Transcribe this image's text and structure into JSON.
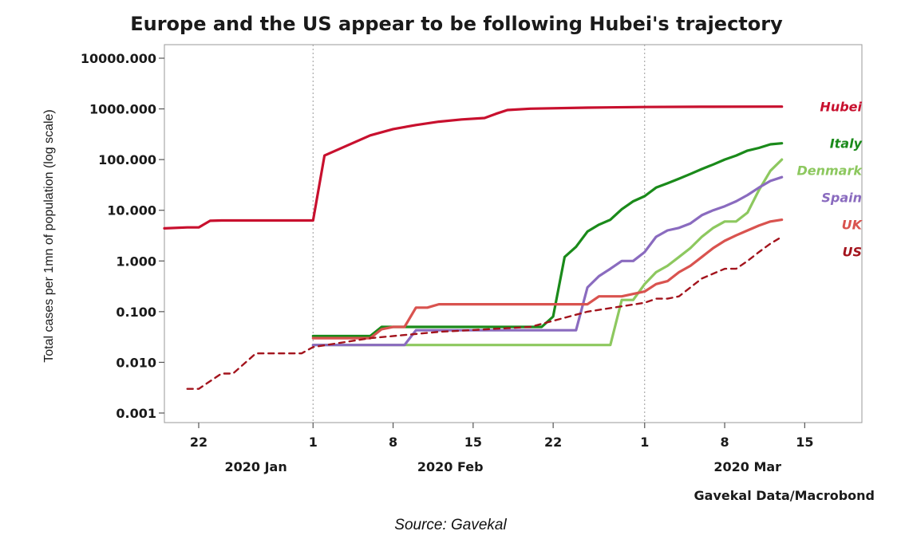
{
  "chart_data": {
    "type": "line",
    "title": "Europe and the US appear to be following Hubei's trajectory",
    "ylabel": "Total cases per 1mn of population (log scale)",
    "xlabel": "",
    "yscale": "log",
    "ylim": [
      0.001,
      10000
    ],
    "xlim": [
      "2020-01-19",
      "2020-03-20"
    ],
    "yticks": [
      "10000.000",
      "1000.000",
      "100.000",
      "10.000",
      "1.000",
      "0.100",
      "0.010",
      "0.001"
    ],
    "xticks": [
      {
        "date": "2020-01-22",
        "label": "22"
      },
      {
        "date": "2020-02-01",
        "label": "1"
      },
      {
        "date": "2020-02-08",
        "label": "8"
      },
      {
        "date": "2020-02-15",
        "label": "15"
      },
      {
        "date": "2020-02-22",
        "label": "22"
      },
      {
        "date": "2020-03-01",
        "label": "1"
      },
      {
        "date": "2020-03-08",
        "label": "8"
      },
      {
        "date": "2020-03-15",
        "label": "15"
      }
    ],
    "month_labels": [
      {
        "date": "2020-01-27",
        "label": "2020 Jan"
      },
      {
        "date": "2020-02-13",
        "label": "2020 Feb"
      },
      {
        "date": "2020-03-10",
        "label": "2020 Mar"
      }
    ],
    "grid": false,
    "legend": "right, labels beside line ends",
    "series": [
      {
        "name": "Hubei",
        "color": "#c8102e",
        "dash": false,
        "x": [
          "2020-01-19",
          "2020-01-21",
          "2020-01-22",
          "2020-01-23",
          "2020-01-24",
          "2020-01-25",
          "2020-01-26",
          "2020-01-27",
          "2020-01-28",
          "2020-01-29",
          "2020-01-30",
          "2020-01-31",
          "2020-02-01",
          "2020-02-02",
          "2020-02-04",
          "2020-02-06",
          "2020-02-08",
          "2020-02-10",
          "2020-02-12",
          "2020-02-14",
          "2020-02-16",
          "2020-02-17",
          "2020-02-18",
          "2020-02-20",
          "2020-02-25",
          "2020-03-01",
          "2020-03-06",
          "2020-03-13"
        ],
        "y": [
          4.4,
          4.6,
          4.6,
          6.2,
          6.3,
          6.3,
          6.3,
          6.3,
          6.3,
          6.3,
          6.3,
          6.3,
          6.3,
          120,
          190,
          300,
          400,
          480,
          560,
          620,
          660,
          800,
          950,
          1010,
          1060,
          1090,
          1100,
          1110
        ]
      },
      {
        "name": "Italy",
        "color": "#1a8a1a",
        "dash": false,
        "x": [
          "2020-02-01",
          "2020-02-06",
          "2020-02-07",
          "2020-02-15",
          "2020-02-21",
          "2020-02-22",
          "2020-02-23",
          "2020-02-24",
          "2020-02-25",
          "2020-02-26",
          "2020-02-27",
          "2020-02-28",
          "2020-02-29",
          "2020-03-01",
          "2020-03-02",
          "2020-03-03",
          "2020-03-04",
          "2020-03-05",
          "2020-03-06",
          "2020-03-07",
          "2020-03-08",
          "2020-03-09",
          "2020-03-10",
          "2020-03-11",
          "2020-03-12",
          "2020-03-13"
        ],
        "y": [
          0.033,
          0.033,
          0.05,
          0.05,
          0.05,
          0.08,
          1.2,
          1.9,
          3.8,
          5.2,
          6.5,
          10.5,
          15,
          19,
          28,
          34,
          42,
          52,
          65,
          80,
          100,
          120,
          150,
          170,
          200,
          210
        ]
      },
      {
        "name": "Denmark",
        "color": "#8dc85f",
        "dash": false,
        "x": [
          "2020-02-01",
          "2020-02-27",
          "2020-02-28",
          "2020-02-29",
          "2020-03-01",
          "2020-03-02",
          "2020-03-03",
          "2020-03-04",
          "2020-03-05",
          "2020-03-06",
          "2020-03-07",
          "2020-03-08",
          "2020-03-09",
          "2020-03-10",
          "2020-03-11",
          "2020-03-12",
          "2020-03-13"
        ],
        "y": [
          0.022,
          0.022,
          0.17,
          0.17,
          0.35,
          0.6,
          0.8,
          1.2,
          1.8,
          3.0,
          4.5,
          6.0,
          6.0,
          9.0,
          25,
          60,
          100
        ]
      },
      {
        "name": "Spain",
        "color": "#8a6bbf",
        "dash": false,
        "x": [
          "2020-02-01",
          "2020-02-09",
          "2020-02-10",
          "2020-02-24",
          "2020-02-25",
          "2020-02-26",
          "2020-02-27",
          "2020-02-28",
          "2020-02-29",
          "2020-03-01",
          "2020-03-02",
          "2020-03-03",
          "2020-03-04",
          "2020-03-05",
          "2020-03-06",
          "2020-03-07",
          "2020-03-08",
          "2020-03-09",
          "2020-03-10",
          "2020-03-11",
          "2020-03-12",
          "2020-03-13"
        ],
        "y": [
          0.022,
          0.022,
          0.043,
          0.043,
          0.3,
          0.5,
          0.7,
          1.0,
          1.0,
          1.5,
          3.0,
          4.0,
          4.5,
          5.5,
          8,
          10,
          12,
          15,
          20,
          28,
          38,
          45
        ]
      },
      {
        "name": "UK",
        "color": "#d9534f",
        "dash": false,
        "x": [
          "2020-02-01",
          "2020-02-06",
          "2020-02-07",
          "2020-02-08",
          "2020-02-09",
          "2020-02-10",
          "2020-02-11",
          "2020-02-12",
          "2020-02-25",
          "2020-02-26",
          "2020-02-27",
          "2020-02-28",
          "2020-03-01",
          "2020-03-02",
          "2020-03-03",
          "2020-03-04",
          "2020-03-05",
          "2020-03-06",
          "2020-03-07",
          "2020-03-08",
          "2020-03-09",
          "2020-03-10",
          "2020-03-11",
          "2020-03-12",
          "2020-03-13"
        ],
        "y": [
          0.03,
          0.03,
          0.045,
          0.05,
          0.05,
          0.12,
          0.12,
          0.14,
          0.14,
          0.2,
          0.2,
          0.2,
          0.25,
          0.35,
          0.4,
          0.6,
          0.8,
          1.2,
          1.8,
          2.5,
          3.2,
          4.0,
          5.0,
          6.0,
          6.5
        ]
      },
      {
        "name": "US",
        "color": "#a3141d",
        "dash": true,
        "x": [
          "2020-01-21",
          "2020-01-22",
          "2020-01-24",
          "2020-01-25",
          "2020-01-27",
          "2020-01-29",
          "2020-01-31",
          "2020-02-01",
          "2020-02-06",
          "2020-02-12",
          "2020-02-20",
          "2020-02-25",
          "2020-03-01",
          "2020-03-02",
          "2020-03-03",
          "2020-03-04",
          "2020-03-05",
          "2020-03-06",
          "2020-03-08",
          "2020-03-09",
          "2020-03-10",
          "2020-03-11",
          "2020-03-12",
          "2020-03-13"
        ],
        "y": [
          0.003,
          0.003,
          0.006,
          0.006,
          0.015,
          0.015,
          0.015,
          0.02,
          0.03,
          0.04,
          0.05,
          0.1,
          0.15,
          0.18,
          0.18,
          0.2,
          0.3,
          0.45,
          0.7,
          0.7,
          1.0,
          1.5,
          2.2,
          3.0
        ]
      }
    ],
    "credit": "Gavekal Data/Macrobond"
  },
  "source_caption": "Source: Gavekal"
}
